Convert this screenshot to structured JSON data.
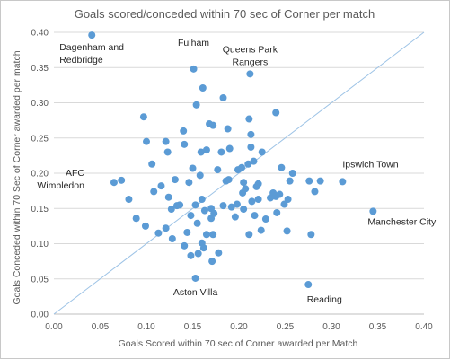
{
  "chart_data": {
    "type": "scatter",
    "title": "Goals scored/conceded within 70 sec of Corner per match",
    "xlabel": "Goals Scored within 70 sec of Corner awarded per Match",
    "ylabel": "Goals Conceded within 70 Sec of Corner awarded per match",
    "xlim": [
      0,
      0.4
    ],
    "ylim": [
      0,
      0.4
    ],
    "x_ticks": [
      "0.00",
      "0.05",
      "0.10",
      "0.15",
      "0.20",
      "0.25",
      "0.30",
      "0.35",
      "0.40"
    ],
    "y_ticks": [
      "0.00",
      "0.05",
      "0.10",
      "0.15",
      "0.20",
      "0.25",
      "0.30",
      "0.35",
      "0.40"
    ],
    "grid": "horizontal",
    "reference_line": "y = x",
    "color": "#5b9bd5",
    "annotations": [
      {
        "lines": [
          "Dagenham and",
          "Redbridge"
        ],
        "point": [
          0.041,
          0.396
        ]
      },
      {
        "lines": [
          "Fulham"
        ],
        "point": [
          0.151,
          0.348
        ]
      },
      {
        "lines": [
          "Queens Park",
          "Rangers"
        ],
        "point": [
          0.212,
          0.341
        ]
      },
      {
        "lines": [
          "AFC",
          "Wimbledon"
        ],
        "point": [
          0.065,
          0.187
        ]
      },
      {
        "lines": [
          "Ipswich Town"
        ],
        "point": [
          0.312,
          0.188
        ]
      },
      {
        "lines": [
          "Manchester City"
        ],
        "point": [
          0.345,
          0.146
        ]
      },
      {
        "lines": [
          "Aston Villa"
        ],
        "point": [
          0.153,
          0.051
        ]
      },
      {
        "lines": [
          "Reading"
        ],
        "point": [
          0.275,
          0.042
        ]
      }
    ],
    "points": [
      [
        0.041,
        0.396
      ],
      [
        0.151,
        0.348
      ],
      [
        0.212,
        0.341
      ],
      [
        0.065,
        0.187
      ],
      [
        0.312,
        0.188
      ],
      [
        0.345,
        0.146
      ],
      [
        0.153,
        0.051
      ],
      [
        0.275,
        0.042
      ],
      [
        0.073,
        0.19
      ],
      [
        0.081,
        0.163
      ],
      [
        0.089,
        0.136
      ],
      [
        0.097,
        0.28
      ],
      [
        0.099,
        0.125
      ],
      [
        0.1,
        0.245
      ],
      [
        0.106,
        0.213
      ],
      [
        0.108,
        0.174
      ],
      [
        0.113,
        0.115
      ],
      [
        0.116,
        0.182
      ],
      [
        0.121,
        0.245
      ],
      [
        0.121,
        0.122
      ],
      [
        0.123,
        0.23
      ],
      [
        0.124,
        0.166
      ],
      [
        0.127,
        0.149
      ],
      [
        0.128,
        0.107
      ],
      [
        0.131,
        0.191
      ],
      [
        0.133,
        0.154
      ],
      [
        0.136,
        0.155
      ],
      [
        0.14,
        0.26
      ],
      [
        0.141,
        0.241
      ],
      [
        0.141,
        0.097
      ],
      [
        0.144,
        0.116
      ],
      [
        0.146,
        0.187
      ],
      [
        0.148,
        0.14
      ],
      [
        0.148,
        0.083
      ],
      [
        0.15,
        0.207
      ],
      [
        0.153,
        0.155
      ],
      [
        0.154,
        0.297
      ],
      [
        0.155,
        0.129
      ],
      [
        0.156,
        0.086
      ],
      [
        0.158,
        0.197
      ],
      [
        0.159,
        0.23
      ],
      [
        0.16,
        0.101
      ],
      [
        0.16,
        0.163
      ],
      [
        0.161,
        0.321
      ],
      [
        0.162,
        0.094
      ],
      [
        0.163,
        0.147
      ],
      [
        0.165,
        0.233
      ],
      [
        0.165,
        0.113
      ],
      [
        0.168,
        0.27
      ],
      [
        0.17,
        0.15
      ],
      [
        0.17,
        0.136
      ],
      [
        0.171,
        0.075
      ],
      [
        0.172,
        0.268
      ],
      [
        0.172,
        0.113
      ],
      [
        0.173,
        0.143
      ],
      [
        0.177,
        0.205
      ],
      [
        0.178,
        0.087
      ],
      [
        0.181,
        0.23
      ],
      [
        0.183,
        0.307
      ],
      [
        0.183,
        0.154
      ],
      [
        0.186,
        0.189
      ],
      [
        0.188,
        0.263
      ],
      [
        0.189,
        0.191
      ],
      [
        0.19,
        0.235
      ],
      [
        0.192,
        0.152
      ],
      [
        0.196,
        0.138
      ],
      [
        0.198,
        0.156
      ],
      [
        0.199,
        0.205
      ],
      [
        0.203,
        0.208
      ],
      [
        0.204,
        0.172
      ],
      [
        0.205,
        0.187
      ],
      [
        0.205,
        0.149
      ],
      [
        0.207,
        0.178
      ],
      [
        0.21,
        0.213
      ],
      [
        0.211,
        0.277
      ],
      [
        0.211,
        0.113
      ],
      [
        0.213,
        0.255
      ],
      [
        0.213,
        0.237
      ],
      [
        0.214,
        0.16
      ],
      [
        0.216,
        0.217
      ],
      [
        0.217,
        0.14
      ],
      [
        0.219,
        0.181
      ],
      [
        0.221,
        0.163
      ],
      [
        0.221,
        0.185
      ],
      [
        0.224,
        0.119
      ],
      [
        0.225,
        0.23
      ],
      [
        0.229,
        0.135
      ],
      [
        0.234,
        0.165
      ],
      [
        0.237,
        0.172
      ],
      [
        0.24,
        0.167
      ],
      [
        0.24,
        0.286
      ],
      [
        0.241,
        0.144
      ],
      [
        0.244,
        0.17
      ],
      [
        0.246,
        0.208
      ],
      [
        0.249,
        0.156
      ],
      [
        0.252,
        0.118
      ],
      [
        0.253,
        0.163
      ],
      [
        0.255,
        0.189
      ],
      [
        0.258,
        0.2
      ],
      [
        0.276,
        0.189
      ],
      [
        0.278,
        0.113
      ],
      [
        0.282,
        0.174
      ],
      [
        0.288,
        0.189
      ]
    ]
  }
}
